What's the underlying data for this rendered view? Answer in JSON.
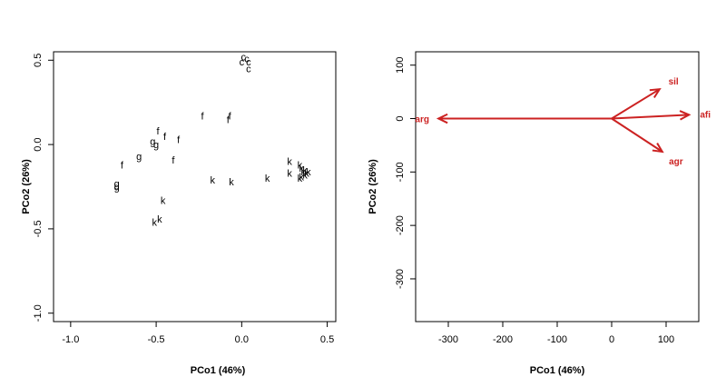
{
  "chart_data": [
    {
      "type": "scatter",
      "xlabel": "PCo1 (46%)",
      "ylabel": "PCo2 (26%)",
      "xlim": [
        -1.1,
        0.55
      ],
      "ylim": [
        -1.05,
        0.55
      ],
      "xticks": [
        "-1.0",
        "-0.5",
        "0.0",
        "0.5"
      ],
      "xtick_values": [
        -1.0,
        -0.5,
        0.0,
        0.5
      ],
      "yticks": [
        "-1.0",
        "-0.5",
        "0.0",
        "0.5"
      ],
      "ytick_values": [
        -1.0,
        -0.5,
        0.0,
        0.5
      ],
      "grid": false,
      "points": [
        {
          "label": "c",
          "x": 0.01,
          "y": 0.52
        },
        {
          "label": "c",
          "x": 0.03,
          "y": 0.51
        },
        {
          "label": "c",
          "x": 0.04,
          "y": 0.49
        },
        {
          "label": "c",
          "x": 0.0,
          "y": 0.49
        },
        {
          "label": "c",
          "x": 0.04,
          "y": 0.45
        },
        {
          "label": "f",
          "x": -0.23,
          "y": 0.17
        },
        {
          "label": "f",
          "x": -0.07,
          "y": 0.17
        },
        {
          "label": "f",
          "x": -0.08,
          "y": 0.15
        },
        {
          "label": "f",
          "x": -0.49,
          "y": 0.08
        },
        {
          "label": "f",
          "x": -0.45,
          "y": 0.05
        },
        {
          "label": "f",
          "x": -0.37,
          "y": 0.03
        },
        {
          "label": "f",
          "x": -0.4,
          "y": -0.09
        },
        {
          "label": "f",
          "x": -0.7,
          "y": -0.12
        },
        {
          "label": "g",
          "x": -0.52,
          "y": 0.02
        },
        {
          "label": "g",
          "x": -0.5,
          "y": 0.0
        },
        {
          "label": "g",
          "x": -0.6,
          "y": -0.07
        },
        {
          "label": "g",
          "x": -0.73,
          "y": -0.23
        },
        {
          "label": "g",
          "x": -0.73,
          "y": -0.25
        },
        {
          "label": "k",
          "x": -0.46,
          "y": -0.33
        },
        {
          "label": "k",
          "x": -0.48,
          "y": -0.44
        },
        {
          "label": "k",
          "x": -0.51,
          "y": -0.46
        },
        {
          "label": "k",
          "x": -0.17,
          "y": -0.21
        },
        {
          "label": "k",
          "x": -0.06,
          "y": -0.22
        },
        {
          "label": "k",
          "x": 0.15,
          "y": -0.2
        },
        {
          "label": "k",
          "x": 0.28,
          "y": -0.1
        },
        {
          "label": "k",
          "x": 0.28,
          "y": -0.17
        },
        {
          "label": "k",
          "x": 0.34,
          "y": -0.12
        },
        {
          "label": "k",
          "x": 0.35,
          "y": -0.14
        },
        {
          "label": "k",
          "x": 0.36,
          "y": -0.16
        },
        {
          "label": "k",
          "x": 0.37,
          "y": -0.15
        },
        {
          "label": "k",
          "x": 0.38,
          "y": -0.17
        },
        {
          "label": "k",
          "x": 0.39,
          "y": -0.16
        },
        {
          "label": "k",
          "x": 0.37,
          "y": -0.18
        },
        {
          "label": "k",
          "x": 0.35,
          "y": -0.19
        },
        {
          "label": "k",
          "x": 0.34,
          "y": -0.2
        }
      ]
    },
    {
      "type": "biplot-arrows",
      "xlabel": "PCo1 (46%)",
      "ylabel": "PCo2 (26%)",
      "xlim": [
        -360,
        160
      ],
      "ylim": [
        -380,
        125
      ],
      "xticks": [
        "-300",
        "-200",
        "-100",
        "0",
        "100"
      ],
      "xtick_values": [
        -300,
        -200,
        -100,
        0,
        100
      ],
      "yticks": [
        "100",
        "0",
        "-100",
        "-200",
        "-300"
      ],
      "ytick_values": [
        100,
        0,
        -100,
        -200,
        -300
      ],
      "grid": false,
      "arrow_color": "#cc2222",
      "origin": [
        0,
        0
      ],
      "arrows": [
        {
          "label": "arg",
          "x": -318,
          "y": 0
        },
        {
          "label": "sil",
          "x": 88,
          "y": 55
        },
        {
          "label": "afi",
          "x": 142,
          "y": 7
        },
        {
          "label": "agr",
          "x": 93,
          "y": -62
        }
      ]
    }
  ]
}
